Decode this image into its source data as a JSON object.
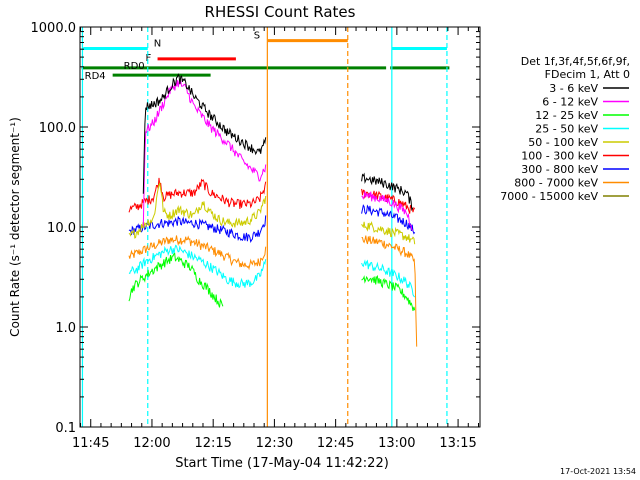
{
  "chart_data": {
    "type": "line",
    "title": "RHESSI Count Rates",
    "xlabel": "Start Time (17-May-04 11:42:22)",
    "ylabel": "Count Rate (s⁻¹ detector segment⁻¹)",
    "y_scale": "log",
    "ylim": [
      0.1,
      1000
    ],
    "xlim_minutes": [
      0,
      98
    ],
    "x_tick_labels": [
      "11:45",
      "12:00",
      "12:15",
      "12:30",
      "12:45",
      "13:00",
      "13:15"
    ],
    "x_tick_minutes": [
      2.63,
      17.63,
      32.63,
      47.63,
      62.63,
      77.63,
      92.63
    ],
    "y_tick_labels": [
      "0.1",
      "1.0",
      "10.0",
      "100.0",
      "1000.0"
    ],
    "y_tick_values": [
      0.1,
      1,
      10,
      100,
      1000
    ],
    "grid": false,
    "legend_position": "right",
    "legend_header": [
      "Det 1f,3f,4f,5f,6f,9f,",
      "FDecim 1, Att 0"
    ],
    "timestamp": "17-Oct-2021 13:54",
    "series": [
      {
        "name": "3 - 6 keV",
        "color": "#000000",
        "segments": [
          {
            "t": [
              15.5,
              16.0,
              18.0,
              20.0,
              22.0,
              24.0,
              26.0,
              28.0,
              32.0,
              36.0,
              40.0,
              44.0,
              45.5
            ],
            "v": [
              20,
              160,
              170,
              190,
              250,
              310,
              270,
              200,
              130,
              90,
              70,
              55,
              72
            ]
          },
          {
            "t": [
              69.0,
              70.0,
              72.0,
              74.0,
              76.0,
              78.0,
              80.0,
              81.5
            ],
            "v": [
              30,
              31,
              29,
              28,
              26,
              24,
              22,
              16
            ]
          }
        ]
      },
      {
        "name": "6 - 12 keV",
        "color": "#ff00ff",
        "segments": [
          {
            "t": [
              15.5,
              16.0,
              18.0,
              20.0,
              22.0,
              24.0,
              26.0,
              28.0,
              32.0,
              36.0,
              40.0,
              44.0,
              45.5
            ],
            "v": [
              10,
              90,
              110,
              160,
              230,
              280,
              240,
              160,
              100,
              70,
              45,
              32,
              40
            ]
          },
          {
            "t": [
              69.0,
              70.0,
              72.0,
              74.0,
              76.0,
              78.0,
              80.0,
              81.5
            ],
            "v": [
              20,
              21,
              20,
              19,
              18,
              16,
              14,
              10
            ]
          }
        ]
      },
      {
        "name": "12 - 25 keV",
        "color": "#00ff00",
        "segments": [
          {
            "t": [
              12.0,
              13.0,
              15.0,
              17.0,
              19.0,
              21.0,
              23.0,
              25.0,
              27.0,
              29.0,
              31.0,
              33.0,
              35.0
            ],
            "v": [
              2.0,
              2.5,
              3.0,
              3.5,
              4.0,
              4.5,
              5.0,
              4.5,
              4.0,
              3.0,
              2.5,
              2.0,
              1.6
            ]
          },
          {
            "t": [
              69.0,
              70.0,
              72.0,
              74.0,
              76.0,
              78.0,
              80.0,
              82.0
            ],
            "v": [
              3.0,
              3.2,
              3.0,
              2.8,
              2.6,
              2.4,
              2.0,
              1.5
            ]
          }
        ]
      },
      {
        "name": "25 - 50 keV",
        "color": "#00ffff",
        "segments": [
          {
            "t": [
              12.0,
              14.0,
              16.0,
              18.0,
              20.0,
              22.0,
              24.0,
              26.0,
              28.0,
              30.0,
              32.0,
              34.0,
              36.0,
              38.0,
              40.0,
              42.0,
              44.0,
              45.5
            ],
            "v": [
              3.5,
              3.8,
              4.5,
              5.0,
              5.5,
              6.0,
              6.0,
              5.5,
              5.0,
              4.5,
              4.0,
              3.5,
              3.0,
              2.8,
              2.7,
              2.8,
              3.2,
              4.5
            ]
          },
          {
            "t": [
              69.0,
              70.0,
              72.0,
              74.0,
              76.0,
              78.0,
              80.0,
              82.0
            ],
            "v": [
              4.5,
              4.3,
              4.0,
              3.8,
              3.5,
              3.2,
              2.8,
              2.2
            ]
          }
        ]
      },
      {
        "name": "50 - 100 keV",
        "color": "#cccc00",
        "segments": [
          {
            "t": [
              12.0,
              14.0,
              16.0,
              18.0,
              19.5,
              20.5,
              22.0,
              24.0,
              26.0,
              28.0,
              30.0,
              32.0,
              34.0,
              36.0,
              38.0,
              40.0,
              42.0,
              44.0,
              45.5
            ],
            "v": [
              8,
              9,
              11,
              12,
              30,
              14,
              13,
              15,
              14,
              13,
              18,
              14,
              12,
              11,
              11,
              11,
              12,
              14,
              20
            ]
          },
          {
            "t": [
              69.0,
              70.0,
              72.0,
              74.0,
              76.0,
              78.0,
              80.0,
              82.0
            ],
            "v": [
              10,
              10.5,
              10,
              9.5,
              9,
              8.5,
              8,
              7
            ]
          }
        ]
      },
      {
        "name": "100 - 300 keV",
        "color": "#ff0000",
        "segments": [
          {
            "t": [
              12.0,
              14.0,
              16.0,
              18.0,
              19.5,
              20.5,
              22.0,
              24.0,
              26.0,
              28.0,
              30.0,
              32.0,
              34.0,
              36.0,
              38.0,
              40.0,
              42.0,
              44.0,
              45.5
            ],
            "v": [
              15,
              16,
              18,
              20,
              30,
              20,
              21,
              22,
              22,
              22,
              28,
              22,
              20,
              18,
              17,
              17,
              17,
              19,
              26
            ]
          },
          {
            "t": [
              69.0,
              70.0,
              72.0,
              74.0,
              76.0,
              78.0,
              80.0,
              82.0
            ],
            "v": [
              22,
              22,
              21,
              20,
              19,
              18,
              16,
              14
            ]
          }
        ]
      },
      {
        "name": "300 - 800 keV",
        "color": "#0000ff",
        "segments": [
          {
            "t": [
              12.0,
              14.0,
              16.0,
              18.0,
              20.0,
              22.0,
              24.0,
              26.0,
              28.0,
              30.0,
              32.0,
              34.0,
              36.0,
              38.0,
              40.0,
              42.0,
              44.0,
              45.5
            ],
            "v": [
              9,
              9.5,
              10,
              10.5,
              11,
              11,
              11.5,
              11,
              11,
              10.5,
              10,
              9.5,
              9,
              8.5,
              8,
              8,
              9,
              12
            ]
          },
          {
            "t": [
              69.0,
              70.0,
              72.0,
              74.0,
              76.0,
              78.0,
              80.0,
              82.0
            ],
            "v": [
              15,
              15,
              14.5,
              14,
              13,
              12,
              11,
              9
            ]
          }
        ]
      },
      {
        "name": "800 - 7000 keV",
        "color": "#ff8c00",
        "segments": [
          {
            "t": [
              12.0,
              14.0,
              16.0,
              18.0,
              20.0,
              22.0,
              24.0,
              26.0,
              28.0,
              30.0,
              32.0,
              34.0,
              36.0,
              38.0,
              40.0,
              42.0,
              44.0,
              45.5
            ],
            "v": [
              5,
              5.5,
              6,
              6.5,
              7,
              7.5,
              7.5,
              7.5,
              7,
              6.5,
              6,
              5.5,
              5,
              4.5,
              4.2,
              4.2,
              4.5,
              6
            ]
          },
          {
            "t": [
              69.0,
              70.0,
              72.0,
              74.0,
              76.0,
              78.0,
              80.0,
              82.0,
              82.5
            ],
            "v": [
              7.5,
              7.5,
              7.2,
              7,
              6.5,
              6,
              5.5,
              4.5,
              0.6
            ]
          }
        ]
      },
      {
        "name": "7000 - 15000 keV",
        "color": "#808000",
        "segments": []
      }
    ],
    "annotations": {
      "vertical_lines": [
        {
          "t": 0.6,
          "style": "solid",
          "color": "#00ffff"
        },
        {
          "t": 16.6,
          "style": "dashed",
          "color": "#00ffff"
        },
        {
          "t": 45.9,
          "style": "solid",
          "color": "#ff8c00"
        },
        {
          "t": 65.6,
          "style": "dashed",
          "color": "#ff8c00"
        },
        {
          "t": 76.4,
          "style": "solid",
          "color": "#00ffff"
        },
        {
          "t": 89.9,
          "style": "dashed",
          "color": "#00ffff"
        }
      ],
      "bars": [
        {
          "label": "N",
          "color": "#00ffff",
          "y": 610,
          "spans": [
            [
              0.8,
              16.6
            ],
            [
              76.4,
              89.9
            ]
          ]
        },
        {
          "label": "S",
          "color": "#ff8c00",
          "y": 730,
          "spans": [
            [
              46.0,
              65.6
            ]
          ]
        },
        {
          "label": "F",
          "color": "#ff0000",
          "y": 480,
          "spans": [
            [
              19.0,
              38.2
            ]
          ]
        },
        {
          "label": "RD0",
          "color": "#008000",
          "y": 390,
          "spans": [
            [
              0.4,
              46.0
            ],
            [
              46.0,
              65.3
            ],
            [
              65.3,
              75.0
            ],
            [
              76.0,
              90.5
            ]
          ]
        },
        {
          "label": "RD4",
          "color": "#008000",
          "y": 330,
          "spans": [
            [
              8.0,
              32.0
            ]
          ]
        }
      ]
    }
  }
}
